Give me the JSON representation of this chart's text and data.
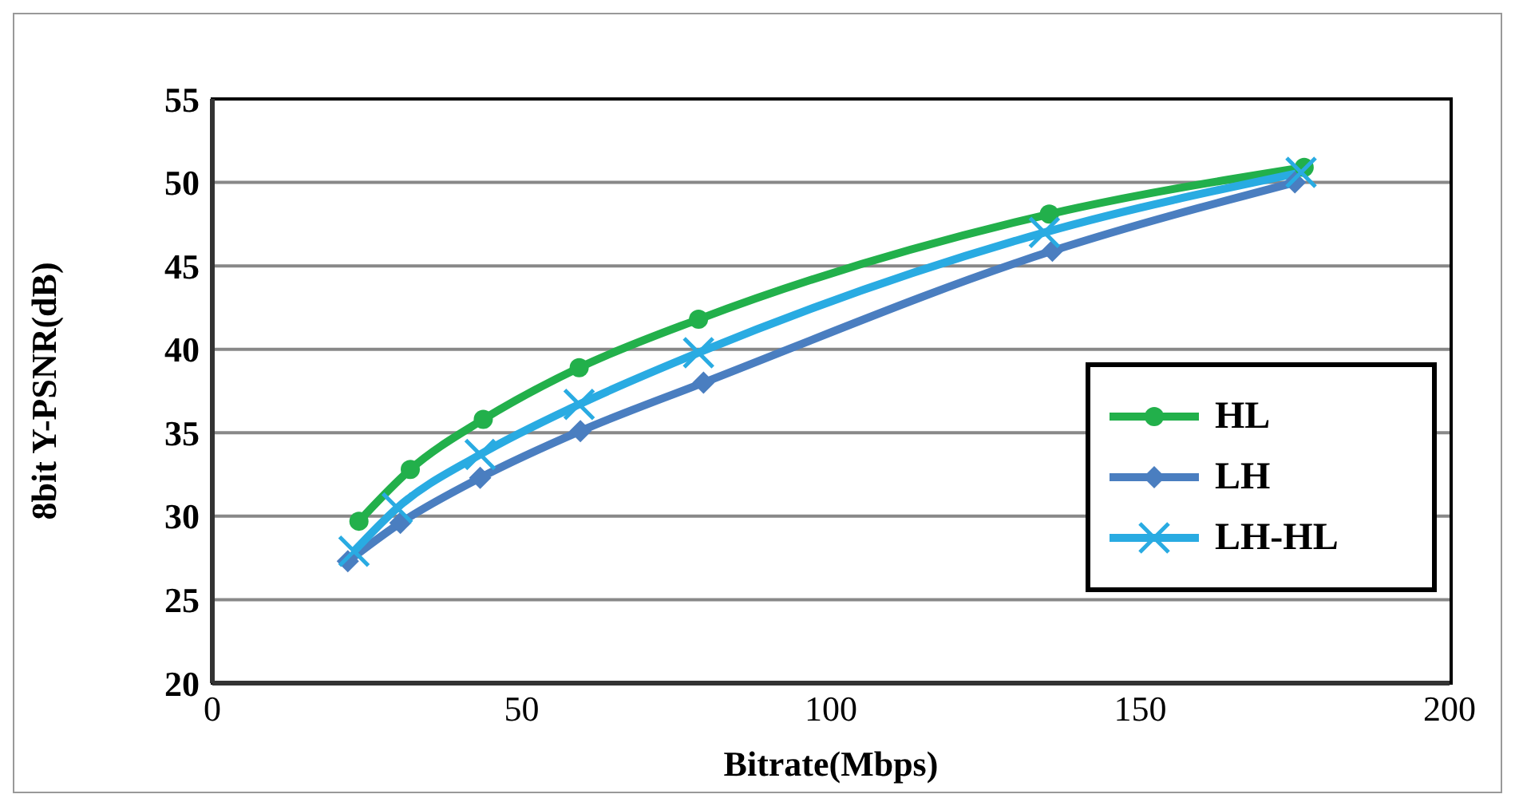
{
  "chart_data": {
    "type": "line",
    "xlabel": "Bitrate(Mbps)",
    "ylabel": "8bit Y-PSNR(dB)",
    "xlim": [
      0,
      200
    ],
    "xticks": [
      0,
      50,
      100,
      150,
      200
    ],
    "ylim": [
      20,
      55
    ],
    "yticks": [
      20,
      25,
      30,
      35,
      40,
      45,
      50,
      55
    ],
    "grid": "y",
    "legend": "right",
    "line_style": "solid",
    "series": [
      {
        "name": "HL",
        "color": "#22b04b",
        "marker": "circle",
        "x": [
          23.7,
          32.0,
          43.8,
          59.3,
          78.6,
          135.3,
          176.5
        ],
        "values": [
          29.7,
          32.8,
          35.8,
          38.9,
          41.8,
          48.1,
          50.9
        ]
      },
      {
        "name": "LH",
        "color": "#4a7ec0",
        "marker": "diamond",
        "x": [
          21.9,
          30.4,
          43.3,
          59.5,
          79.4,
          135.8,
          175.0
        ],
        "values": [
          27.3,
          29.6,
          32.3,
          35.1,
          38.0,
          45.9,
          50.0
        ]
      },
      {
        "name": "LH-HL",
        "color": "#29abe2",
        "marker": "cross",
        "x": [
          22.9,
          29.9,
          43.3,
          59.3,
          78.6,
          134.5,
          176.0
        ],
        "values": [
          27.9,
          30.5,
          33.7,
          36.7,
          39.8,
          47.0,
          50.6
        ]
      }
    ]
  }
}
